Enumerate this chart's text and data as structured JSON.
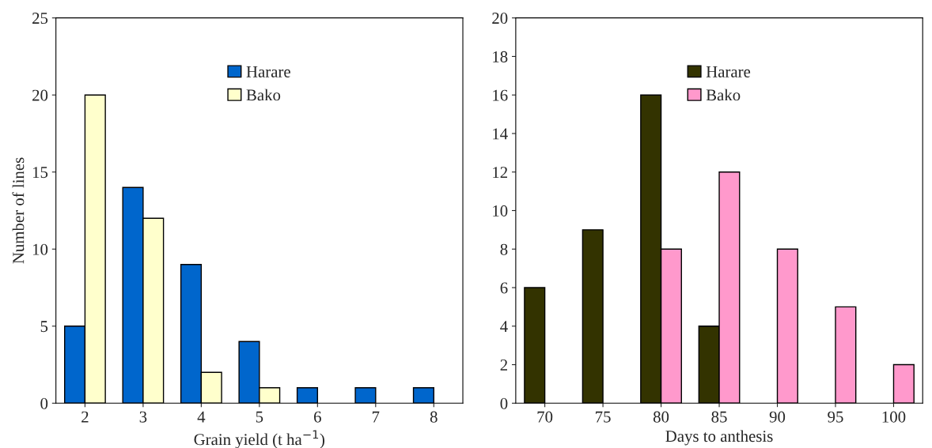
{
  "chart_data": [
    {
      "type": "bar",
      "xlabel": "Grain yield (t ha$^{−1}$)",
      "ylabel": "Number of lines",
      "categories": [
        "2",
        "3",
        "4",
        "5",
        "6",
        "7",
        "8"
      ],
      "series": [
        {
          "name": "Harare",
          "color": "#0066cc",
          "values": [
            5,
            14,
            9,
            4,
            1,
            1,
            1
          ]
        },
        {
          "name": "Bako",
          "color": "#ffffcc",
          "values": [
            20,
            12,
            2,
            1,
            null,
            null,
            null
          ]
        }
      ],
      "ylim": [
        0,
        25
      ],
      "yticks": [
        0,
        5,
        10,
        15,
        20,
        25
      ],
      "grid": false,
      "legend": "top"
    },
    {
      "type": "bar",
      "xlabel": "Days to anthesis",
      "categories": [
        "70",
        "75",
        "80",
        "85",
        "90",
        "95",
        "100"
      ],
      "series": [
        {
          "name": "Harare",
          "color": "#333300",
          "values": [
            6,
            9,
            16,
            4,
            null,
            null,
            null
          ]
        },
        {
          "name": "Bako",
          "color": "#ff99cc",
          "values": [
            null,
            null,
            8,
            12,
            8,
            5,
            2
          ]
        }
      ],
      "ylim": [
        0,
        20
      ],
      "yticks": [
        0,
        2,
        4,
        6,
        8,
        10,
        12,
        14,
        16,
        18,
        20
      ],
      "grid": false,
      "legend": "top"
    }
  ]
}
